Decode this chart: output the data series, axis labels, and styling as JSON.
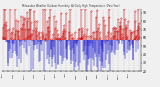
{
  "background_color": "#f0f0f0",
  "plot_bg_color": "#f0f0f0",
  "grid_color": "#aaaaaa",
  "bar_color_above": "#cc0000",
  "bar_color_below": "#0000cc",
  "ylim": [
    20,
    95
  ],
  "yticks": [
    20,
    30,
    40,
    50,
    60,
    70,
    80,
    90
  ],
  "baseline": 57,
  "n_days": 365,
  "seed": 42,
  "n_gridlines": 26
}
